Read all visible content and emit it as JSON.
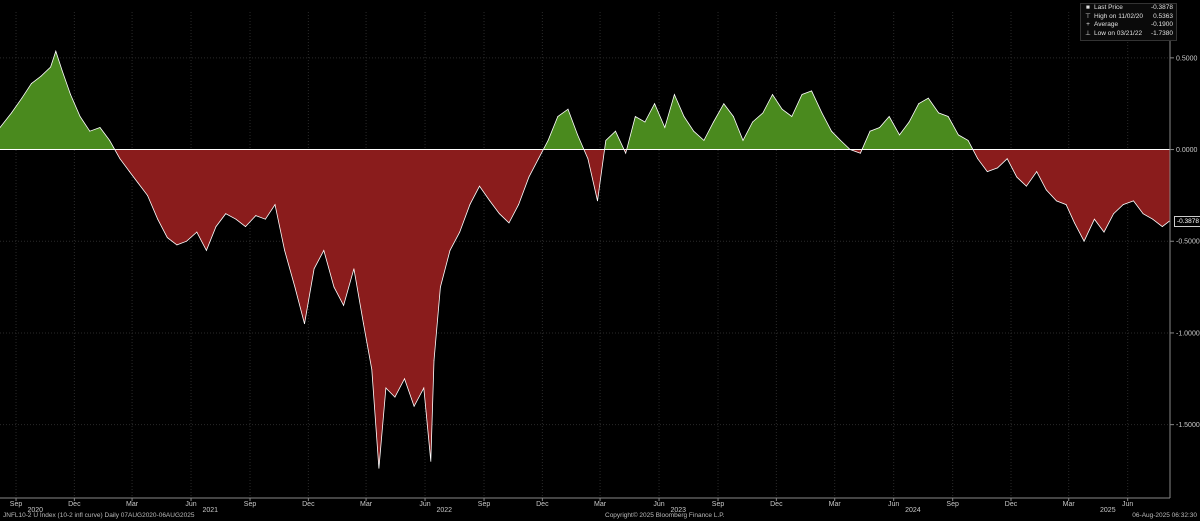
{
  "chart_data": {
    "type": "area",
    "ylim": [
      -1.9,
      0.75
    ],
    "y_ticks": [
      {
        "value": 0.5,
        "label": "0.5000"
      },
      {
        "value": 0.0,
        "label": "0.0000"
      },
      {
        "value": -0.5,
        "label": "-0.5000"
      },
      {
        "value": -1.0,
        "label": "-1.0000"
      },
      {
        "value": -1.5,
        "label": "-1.5000"
      }
    ],
    "x_ticks": [
      "Sep",
      "Dec",
      "Mar",
      "Jun",
      "Sep",
      "Dec",
      "Mar",
      "Jun",
      "Sep",
      "Dec",
      "Mar",
      "Jun",
      "Sep",
      "Dec",
      "Mar",
      "Jun",
      "Sep",
      "Dec",
      "Mar",
      "Jun"
    ],
    "x_tick_dates": [
      "2020-09",
      "2020-12",
      "2021-03",
      "2021-06",
      "2021-09",
      "2021-12",
      "2022-03",
      "2022-06",
      "2022-09",
      "2022-12",
      "2023-03",
      "2023-06",
      "2023-09",
      "2023-12",
      "2024-03",
      "2024-06",
      "2024-09",
      "2024-12",
      "2025-03",
      "2025-06"
    ],
    "year_labels": [
      {
        "label": "2020",
        "date": "2020-10"
      },
      {
        "label": "2021",
        "date": "2021-07"
      },
      {
        "label": "2022",
        "date": "2022-07"
      },
      {
        "label": "2023",
        "date": "2023-07"
      },
      {
        "label": "2024",
        "date": "2024-07"
      },
      {
        "label": "2025",
        "date": "2025-05"
      }
    ],
    "x_range": [
      "2020-08-07",
      "2025-08-06"
    ],
    "colors": {
      "positive": "#4a8a1e",
      "negative": "#8a1c1c",
      "line": "#ffffff",
      "zero_line": "#ffffff",
      "grid": "#2a2a2a"
    },
    "series": [
      {
        "name": "Last Price",
        "x": [
          "2020-08-07",
          "2020-08-25",
          "2020-09-10",
          "2020-09-25",
          "2020-10-10",
          "2020-10-25",
          "2020-11-02",
          "2020-11-12",
          "2020-11-25",
          "2020-12-10",
          "2020-12-25",
          "2021-01-10",
          "2021-01-25",
          "2021-02-10",
          "2021-02-25",
          "2021-03-10",
          "2021-03-25",
          "2021-04-10",
          "2021-04-25",
          "2021-05-10",
          "2021-05-25",
          "2021-06-10",
          "2021-06-25",
          "2021-07-10",
          "2021-07-25",
          "2021-08-10",
          "2021-08-25",
          "2021-09-10",
          "2021-09-25",
          "2021-10-10",
          "2021-10-25",
          "2021-11-10",
          "2021-11-25",
          "2021-12-10",
          "2021-12-25",
          "2022-01-10",
          "2022-01-25",
          "2022-02-10",
          "2022-02-25",
          "2022-03-10",
          "2022-03-21",
          "2022-04-01",
          "2022-04-15",
          "2022-04-30",
          "2022-05-15",
          "2022-05-30",
          "2022-06-10",
          "2022-06-15",
          "2022-06-25",
          "2022-07-10",
          "2022-07-25",
          "2022-08-10",
          "2022-08-25",
          "2022-09-10",
          "2022-09-25",
          "2022-10-10",
          "2022-10-25",
          "2022-11-10",
          "2022-11-25",
          "2022-12-10",
          "2022-12-25",
          "2023-01-10",
          "2023-01-25",
          "2023-02-10",
          "2023-02-25",
          "2023-03-10",
          "2023-03-25",
          "2023-04-10",
          "2023-04-25",
          "2023-05-10",
          "2023-05-25",
          "2023-06-10",
          "2023-06-25",
          "2023-07-10",
          "2023-07-25",
          "2023-08-10",
          "2023-08-25",
          "2023-09-10",
          "2023-09-25",
          "2023-10-10",
          "2023-10-25",
          "2023-11-10",
          "2023-11-25",
          "2023-12-10",
          "2023-12-25",
          "2024-01-10",
          "2024-01-25",
          "2024-02-10",
          "2024-02-25",
          "2024-03-10",
          "2024-03-25",
          "2024-04-10",
          "2024-04-25",
          "2024-05-10",
          "2024-05-25",
          "2024-06-10",
          "2024-06-25",
          "2024-07-10",
          "2024-07-25",
          "2024-08-10",
          "2024-08-25",
          "2024-09-10",
          "2024-09-25",
          "2024-10-10",
          "2024-10-25",
          "2024-11-10",
          "2024-11-25",
          "2024-12-10",
          "2024-12-25",
          "2025-01-10",
          "2025-01-25",
          "2025-02-10",
          "2025-02-25",
          "2025-03-10",
          "2025-03-25",
          "2025-04-10",
          "2025-04-25",
          "2025-05-10",
          "2025-05-25",
          "2025-06-10",
          "2025-06-25",
          "2025-07-10",
          "2025-07-25",
          "2025-08-06"
        ],
        "y": [
          0.12,
          0.2,
          0.28,
          0.36,
          0.4,
          0.45,
          0.536,
          0.43,
          0.3,
          0.18,
          0.1,
          0.12,
          0.05,
          -0.05,
          -0.12,
          -0.18,
          -0.25,
          -0.38,
          -0.48,
          -0.52,
          -0.5,
          -0.45,
          -0.55,
          -0.42,
          -0.35,
          -0.38,
          -0.42,
          -0.36,
          -0.38,
          -0.3,
          -0.55,
          -0.75,
          -0.95,
          -0.65,
          -0.55,
          -0.75,
          -0.85,
          -0.65,
          -0.95,
          -1.2,
          -1.738,
          -1.3,
          -1.35,
          -1.25,
          -1.4,
          -1.3,
          -1.7,
          -1.15,
          -0.75,
          -0.55,
          -0.45,
          -0.3,
          -0.2,
          -0.28,
          -0.35,
          -0.4,
          -0.3,
          -0.15,
          -0.05,
          0.05,
          0.18,
          0.22,
          0.08,
          -0.05,
          -0.28,
          0.05,
          0.1,
          -0.02,
          0.18,
          0.15,
          0.25,
          0.12,
          0.3,
          0.18,
          0.1,
          0.05,
          0.15,
          0.25,
          0.18,
          0.05,
          0.15,
          0.2,
          0.3,
          0.22,
          0.18,
          0.3,
          0.32,
          0.2,
          0.1,
          0.05,
          0.0,
          -0.02,
          0.1,
          0.12,
          0.18,
          0.08,
          0.15,
          0.25,
          0.28,
          0.2,
          0.18,
          0.08,
          0.05,
          -0.05,
          -0.12,
          -0.1,
          -0.05,
          -0.15,
          -0.2,
          -0.12,
          -0.22,
          -0.28,
          -0.3,
          -0.4,
          -0.5,
          -0.38,
          -0.45,
          -0.35,
          -0.3,
          -0.28,
          -0.35,
          -0.38,
          -0.42,
          -0.3878
        ]
      }
    ],
    "legend": [
      {
        "mark": "■",
        "label": "Last Price",
        "value": "-0.3878"
      },
      {
        "mark": "⊤",
        "label": "High on 11/02/20",
        "value": "0.5363"
      },
      {
        "mark": "+",
        "label": "Average",
        "value": "-0.1900"
      },
      {
        "mark": "⊥",
        "label": "Low on 03/21/22",
        "value": "-1.7380"
      }
    ],
    "last_value_label": "-0.3878"
  },
  "footer": {
    "left": "JNFL10-2 U Index (10-2 infl curve)  Daily 07AUG2020-06AUG2025",
    "center": "Copyright© 2025 Bloomberg Finance L.P.",
    "right": "06-Aug-2025 06:32:30"
  }
}
